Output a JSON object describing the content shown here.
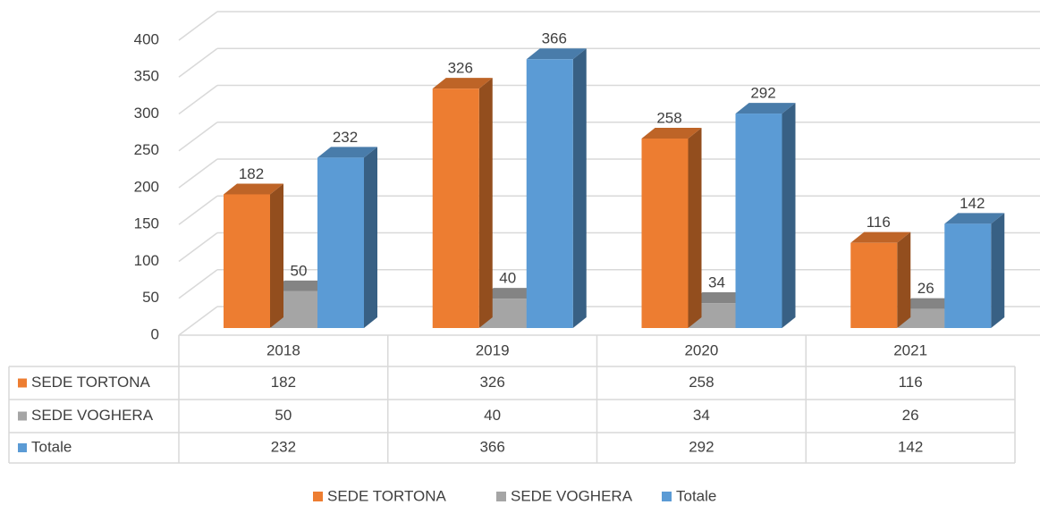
{
  "chart_data": {
    "type": "bar3d",
    "categories": [
      "2018",
      "2019",
      "2020",
      "2021"
    ],
    "series": [
      {
        "name": "SEDE TORTONA",
        "color": "#ed7d31",
        "values": [
          182,
          326,
          258,
          116
        ]
      },
      {
        "name": "SEDE VOGHERA",
        "color": "#a5a5a5",
        "values": [
          50,
          40,
          34,
          26
        ]
      },
      {
        "name": "Totale",
        "color": "#5b9bd5",
        "values": [
          232,
          366,
          292,
          142
        ]
      }
    ],
    "ylim": [
      0,
      400
    ],
    "yticks": [
      0,
      50,
      100,
      150,
      200,
      250,
      300,
      350,
      400
    ],
    "grid": true
  }
}
